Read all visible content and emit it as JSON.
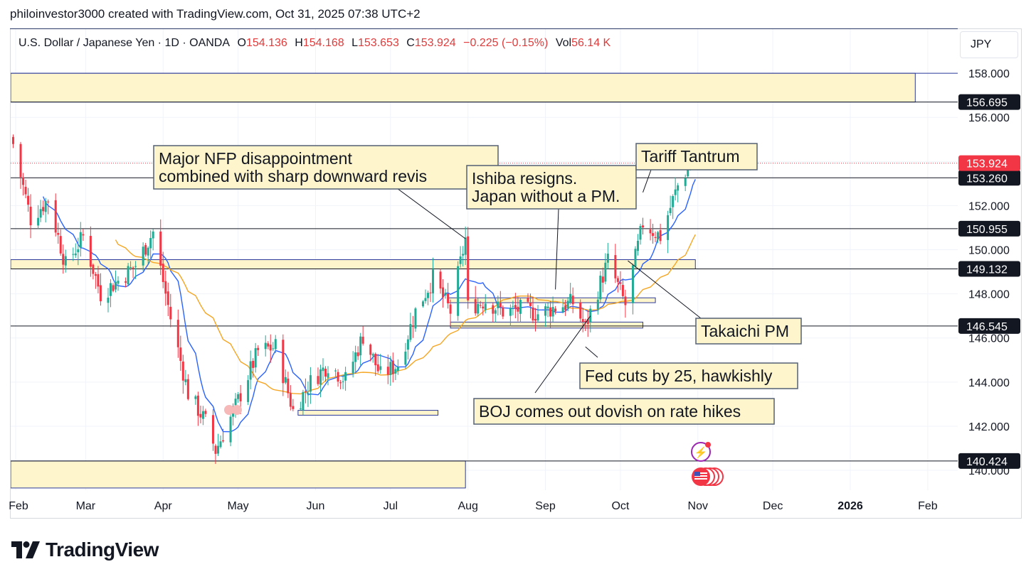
{
  "caption": "philoinvestor3000 created with TradingView.com, Oct 31, 2025 07:38 UTC+2",
  "legend": {
    "symbol": "U.S. Dollar / Japanese Yen · 1D · OANDA",
    "o_label": "O",
    "o_value": "154.136",
    "h_label": "H",
    "h_value": "154.168",
    "l_label": "L",
    "l_value": "153.653",
    "c_label": "C",
    "c_value": "153.924",
    "change": "−0.225 (−0.15%)",
    "vol_label": "Vol",
    "vol_value": "56.14 K"
  },
  "currency": "JPY",
  "brand": "TradingView",
  "colors": {
    "up": "#22ab94",
    "down": "#f23645",
    "ma_fast": "#2962ff",
    "ma_slow": "#f5a623",
    "zone_fill": "#fff5cc",
    "zone_border": "#2b3a9a",
    "line": "#131722",
    "price_tag": "#f23645",
    "level_tag": "#131722"
  },
  "chart_data": {
    "type": "candlestick",
    "symbol": "USDJPY",
    "timeframe": "1D",
    "ylim": [
      139.1,
      160.0
    ],
    "y_ticks": [
      140.0,
      142.0,
      144.0,
      146.0,
      148.0,
      150.0,
      152.0,
      154.0,
      156.0,
      158.0
    ],
    "y_tick_labels": [
      "140.000",
      "142.000",
      "144.000",
      "146.000",
      "148.000",
      "150.000",
      "152.000",
      "154.000",
      "156.000",
      "158.000"
    ],
    "x_ticks": [
      {
        "date": "2025-02-01",
        "label": "Feb"
      },
      {
        "date": "2025-03-01",
        "label": "Mar"
      },
      {
        "date": "2025-04-01",
        "label": "Apr"
      },
      {
        "date": "2025-05-01",
        "label": "May"
      },
      {
        "date": "2025-06-01",
        "label": "Jun"
      },
      {
        "date": "2025-07-01",
        "label": "Jul"
      },
      {
        "date": "2025-08-01",
        "label": "Aug"
      },
      {
        "date": "2025-09-01",
        "label": "Sep"
      },
      {
        "date": "2025-10-01",
        "label": "Oct"
      },
      {
        "date": "2025-11-01",
        "label": "Nov"
      },
      {
        "date": "2025-12-01",
        "label": "Dec"
      },
      {
        "date": "2026-01-01",
        "label": "2026",
        "bold": true
      },
      {
        "date": "2026-02-01",
        "label": "Feb"
      }
    ],
    "x_range": [
      "2025-01-30",
      "2026-02-13"
    ],
    "close_anchors": [
      [
        "2025-01-31",
        154.8
      ],
      [
        "2025-02-07",
        151.4
      ],
      [
        "2025-02-14",
        152.3
      ],
      [
        "2025-02-21",
        149.3
      ],
      [
        "2025-02-28",
        150.6
      ],
      [
        "2025-03-07",
        148.0
      ],
      [
        "2025-03-14",
        148.6
      ],
      [
        "2025-03-21",
        149.3
      ],
      [
        "2025-03-28",
        150.8
      ],
      [
        "2025-04-04",
        146.9
      ],
      [
        "2025-04-11",
        143.5
      ],
      [
        "2025-04-18",
        142.2
      ],
      [
        "2025-04-22",
        140.9
      ],
      [
        "2025-04-30",
        142.9
      ],
      [
        "2025-05-09",
        145.4
      ],
      [
        "2025-05-16",
        145.6
      ],
      [
        "2025-05-23",
        142.7
      ],
      [
        "2025-05-30",
        144.0
      ],
      [
        "2025-06-06",
        144.8
      ],
      [
        "2025-06-13",
        144.1
      ],
      [
        "2025-06-20",
        146.1
      ],
      [
        "2025-06-27",
        144.3
      ],
      [
        "2025-07-04",
        144.8
      ],
      [
        "2025-07-11",
        147.2
      ],
      [
        "2025-07-18",
        148.7
      ],
      [
        "2025-07-25",
        147.2
      ],
      [
        "2025-07-31",
        150.5
      ],
      [
        "2025-08-01",
        147.4
      ],
      [
        "2025-08-08",
        147.7
      ],
      [
        "2025-08-15",
        147.2
      ],
      [
        "2025-08-22",
        147.3
      ],
      [
        "2025-08-29",
        147.1
      ],
      [
        "2025-09-05",
        147.4
      ],
      [
        "2025-09-12",
        147.6
      ],
      [
        "2025-09-17",
        146.5
      ],
      [
        "2025-09-26",
        149.5
      ],
      [
        "2025-10-03",
        147.5
      ],
      [
        "2025-10-10",
        151.2
      ],
      [
        "2025-10-17",
        150.6
      ],
      [
        "2025-10-24",
        152.9
      ],
      [
        "2025-10-30",
        154.1
      ],
      [
        "2025-10-31",
        153.924
      ]
    ],
    "last_price": {
      "value": 153.924,
      "label": "153.924"
    },
    "levels": [
      {
        "value": 158.0,
        "label": ""
      },
      {
        "value": 156.695,
        "label": "156.695"
      },
      {
        "value": 153.26,
        "label": "153.260"
      },
      {
        "value": 150.955,
        "label": "150.955"
      },
      {
        "value": 149.132,
        "label": "149.132"
      },
      {
        "value": 146.545,
        "label": "146.545"
      },
      {
        "value": 140.424,
        "label": "140.424"
      }
    ],
    "zones": [
      {
        "from_date": "2025-01-30",
        "to_date": "2026-01-27",
        "low": 156.695,
        "high": 158.0
      },
      {
        "from_date": "2025-01-30",
        "to_date": "2025-10-31",
        "low": 149.132,
        "high": 149.55
      },
      {
        "from_date": "2025-01-30",
        "to_date": "2025-07-31",
        "low": 139.2,
        "high": 140.424
      },
      {
        "from_date": "2025-05-25",
        "to_date": "2025-07-20",
        "low": 142.5,
        "high": 142.72
      },
      {
        "from_date": "2025-07-24",
        "to_date": "2025-10-15",
        "low": 147.6,
        "high": 147.82
      },
      {
        "from_date": "2025-07-25",
        "to_date": "2025-10-10",
        "low": 146.45,
        "high": 146.72
      }
    ],
    "annotations": [
      {
        "lines": [
          "Major NFP disappointment",
          "combined with sharp downward revisions"
        ],
        "visible_chars": 34,
        "anchor_date": "2025-07-31",
        "anchor_price": 150.5
      },
      {
        "lines": [
          "Ishiba resigns.",
          "Japan without a PM."
        ],
        "anchor_date": "2025-09-05",
        "anchor_price": 148.2
      },
      {
        "lines": [
          "Tariff Tantrum"
        ],
        "anchor_date": "2025-10-10",
        "anchor_price": 152.6
      },
      {
        "lines": [
          "Takaichi PM"
        ],
        "anchor_date": "2025-10-04",
        "anchor_price": 149.5
      },
      {
        "lines": [
          "Fed cuts by 25, hawkishly"
        ],
        "anchor_date": "2025-09-17",
        "anchor_price": 145.6
      },
      {
        "lines": [
          "BOJ comes out dovish on rate hikes"
        ],
        "anchor_date": "2025-09-19",
        "anchor_price": 147.0
      }
    ],
    "moving_averages": [
      {
        "kind": "fast",
        "period": 9
      },
      {
        "kind": "slow",
        "period": 30
      }
    ],
    "grid": true
  }
}
